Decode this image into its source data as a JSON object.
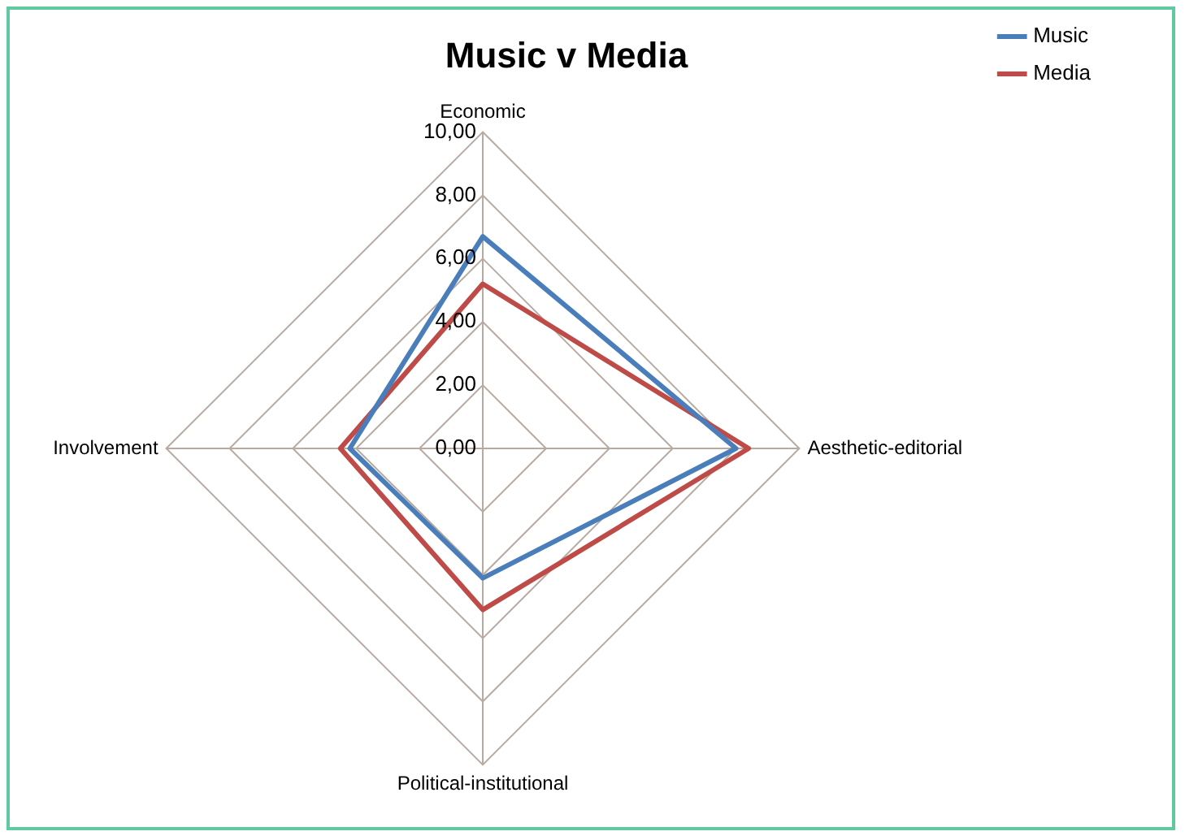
{
  "chart_data": {
    "type": "radar",
    "title": "Music v Media",
    "categories": [
      "Economic",
      "Aesthetic-editorial",
      "Political-institutional",
      "Involvement"
    ],
    "series": [
      {
        "name": "Music",
        "color": "#4a7ebb",
        "values": [
          6.7,
          8.0,
          4.1,
          4.2
        ]
      },
      {
        "name": "Media",
        "color": "#be4b48",
        "values": [
          5.2,
          8.4,
          5.1,
          4.5
        ]
      }
    ],
    "ylim": [
      0,
      10
    ],
    "yticks": [
      {
        "value": 0,
        "label": "0,00"
      },
      {
        "value": 2,
        "label": "2,00"
      },
      {
        "value": 4,
        "label": "4,00"
      },
      {
        "value": 6,
        "label": "6,00"
      },
      {
        "value": 8,
        "label": "8,00"
      },
      {
        "value": 10,
        "label": "10,00"
      }
    ],
    "grid": true,
    "legend": "top right",
    "marker": "none"
  }
}
